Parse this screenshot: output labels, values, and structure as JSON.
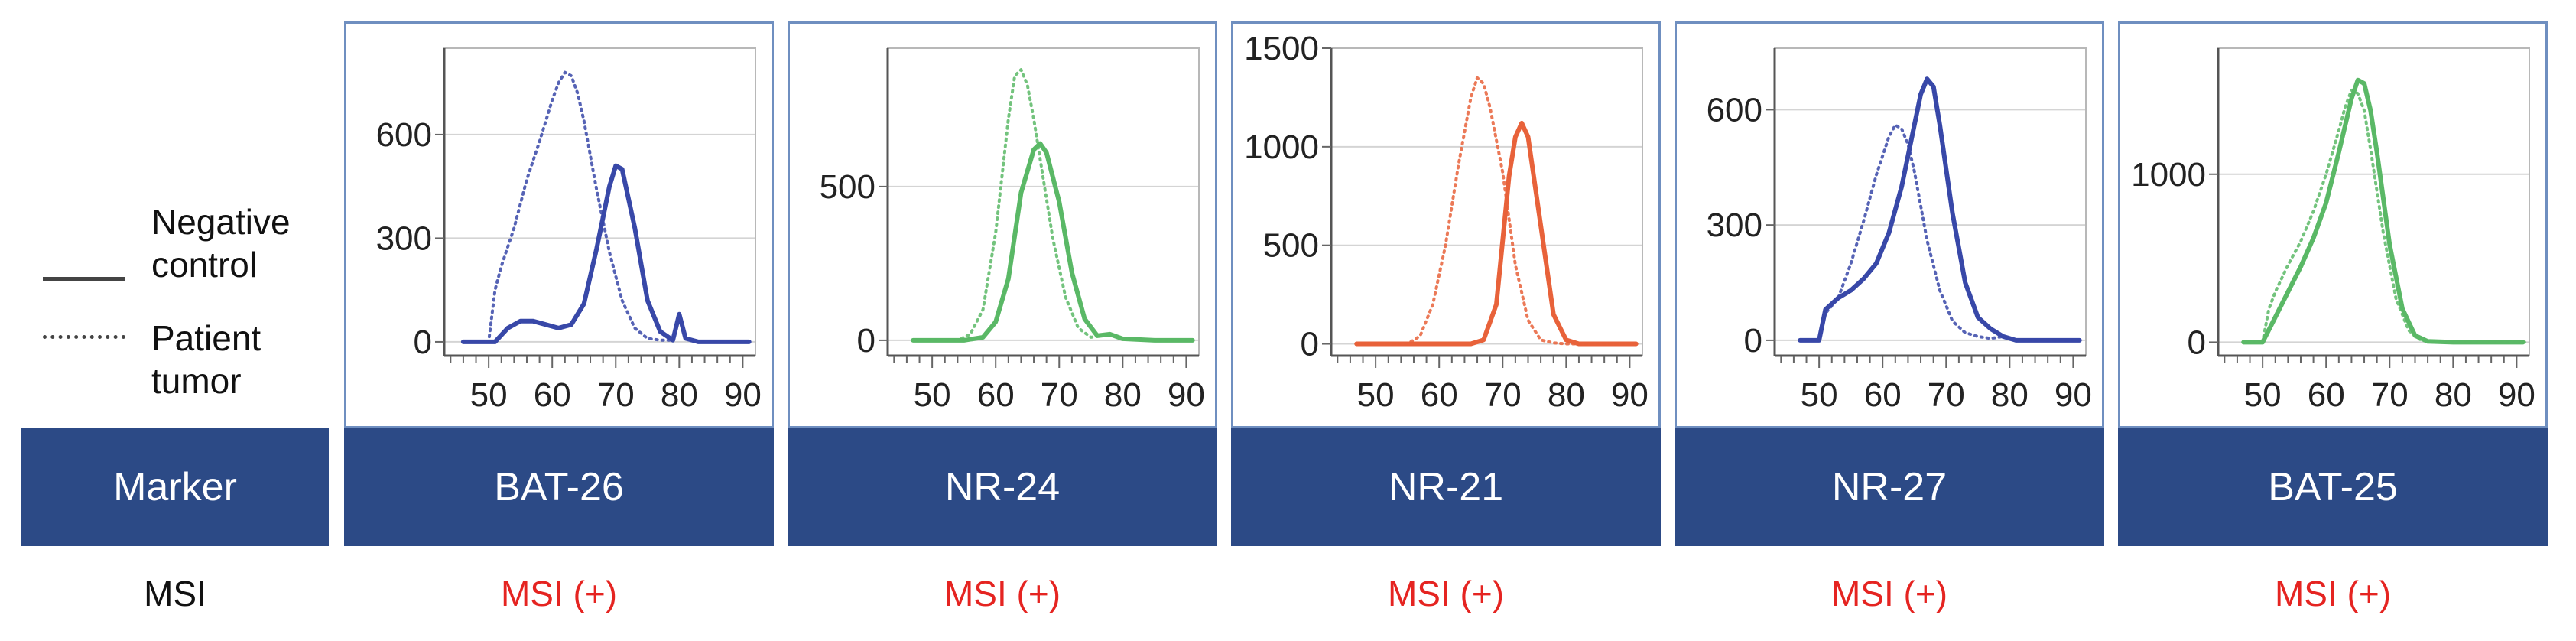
{
  "legend": {
    "entries": [
      {
        "label_lines": [
          "Negative",
          "control"
        ],
        "style": "solid"
      },
      {
        "label_lines": [
          "Patient",
          "tumor"
        ],
        "style": "dotted"
      }
    ]
  },
  "row_labels": {
    "marker": "Marker",
    "msi": "MSI"
  },
  "colors": {
    "blue": "#3848a8",
    "green": "#5ab866",
    "orange": "#e8623a",
    "bar": "#2c4a86",
    "msi_text": "#e52421"
  },
  "chart_data": [
    {
      "type": "line",
      "marker": "BAT-26",
      "msi_status": "MSI (+)",
      "color": "blue",
      "x_ticks": [
        50,
        60,
        70,
        80,
        90
      ],
      "y_ticks": [
        0,
        300,
        600
      ],
      "xlim": [
        43,
        92
      ],
      "ylim": [
        -40,
        850
      ],
      "grid": true,
      "series": [
        {
          "style": "solid",
          "x": [
            46,
            51,
            53,
            55,
            57,
            59,
            61,
            63,
            65,
            67,
            69,
            70,
            71,
            73,
            75,
            77,
            79,
            80,
            81,
            83,
            86,
            91
          ],
          "y": [
            0,
            0,
            40,
            60,
            60,
            50,
            40,
            50,
            110,
            270,
            450,
            510,
            500,
            330,
            120,
            30,
            5,
            80,
            10,
            0,
            0,
            0
          ]
        },
        {
          "style": "dotted",
          "x": [
            46,
            50,
            51,
            52,
            54,
            56,
            58,
            60,
            61,
            62,
            63,
            64,
            65,
            67,
            69,
            71,
            73,
            75,
            77,
            79,
            80,
            81,
            83,
            86,
            91
          ],
          "y": [
            0,
            0,
            150,
            220,
            330,
            470,
            580,
            700,
            750,
            780,
            770,
            720,
            640,
            440,
            260,
            120,
            40,
            10,
            5,
            5,
            70,
            10,
            0,
            0,
            0
          ]
        }
      ]
    },
    {
      "type": "line",
      "marker": "NR-24",
      "msi_status": "MSI (+)",
      "color": "green",
      "x_ticks": [
        50,
        60,
        70,
        80,
        90
      ],
      "y_ticks": [
        0,
        500
      ],
      "xlim": [
        43,
        92
      ],
      "ylim": [
        -50,
        950
      ],
      "grid": true,
      "series": [
        {
          "style": "solid",
          "x": [
            47,
            55,
            58,
            60,
            62,
            64,
            66,
            67,
            68,
            70,
            72,
            74,
            76,
            78,
            80,
            85,
            91
          ],
          "y": [
            0,
            0,
            10,
            60,
            200,
            480,
            620,
            640,
            610,
            450,
            220,
            70,
            15,
            20,
            5,
            0,
            0
          ]
        },
        {
          "style": "dotted",
          "x": [
            47,
            54,
            56,
            58,
            60,
            62,
            63,
            64,
            65,
            66,
            67,
            69,
            71,
            73,
            75,
            78,
            80,
            85,
            91
          ],
          "y": [
            0,
            0,
            20,
            100,
            350,
            720,
            860,
            880,
            830,
            720,
            590,
            330,
            140,
            40,
            10,
            20,
            5,
            0,
            0
          ]
        }
      ]
    },
    {
      "type": "line",
      "marker": "NR-21",
      "msi_status": "MSI (+)",
      "color": "orange",
      "x_ticks": [
        50,
        60,
        70,
        80,
        90
      ],
      "y_ticks": [
        0,
        500,
        1000,
        1500
      ],
      "xlim": [
        43,
        92
      ],
      "ylim": [
        -60,
        1500
      ],
      "grid": true,
      "series": [
        {
          "style": "solid",
          "x": [
            47,
            65,
            67,
            69,
            71,
            72,
            73,
            74,
            76,
            78,
            80,
            82,
            86,
            91
          ],
          "y": [
            0,
            0,
            20,
            200,
            850,
            1050,
            1120,
            1050,
            600,
            150,
            20,
            0,
            0,
            0
          ]
        },
        {
          "style": "dotted",
          "x": [
            47,
            55,
            57,
            59,
            61,
            63,
            65,
            66,
            67,
            68,
            70,
            72,
            74,
            76,
            78,
            80,
            86,
            91
          ],
          "y": [
            0,
            0,
            40,
            200,
            500,
            900,
            1250,
            1350,
            1320,
            1200,
            870,
            400,
            120,
            20,
            5,
            0,
            0,
            0
          ]
        }
      ]
    },
    {
      "type": "line",
      "marker": "NR-27",
      "msi_status": "MSI (+)",
      "color": "blue",
      "x_ticks": [
        50,
        60,
        70,
        80,
        90
      ],
      "y_ticks": [
        0,
        300,
        600
      ],
      "xlim": [
        43,
        92
      ],
      "ylim": [
        -40,
        760
      ],
      "grid": true,
      "series": [
        {
          "style": "solid",
          "x": [
            47,
            50,
            51,
            53,
            55,
            57,
            59,
            61,
            63,
            65,
            66,
            67,
            68,
            69,
            71,
            73,
            75,
            77,
            79,
            81,
            84,
            91
          ],
          "y": [
            0,
            0,
            80,
            110,
            130,
            160,
            200,
            280,
            400,
            560,
            640,
            680,
            660,
            560,
            330,
            150,
            60,
            30,
            10,
            0,
            0,
            0
          ]
        },
        {
          "style": "dotted",
          "x": [
            47,
            50,
            51,
            53,
            55,
            57,
            59,
            61,
            62,
            63,
            64,
            65,
            67,
            69,
            71,
            73,
            75,
            77,
            79,
            81,
            84,
            91
          ],
          "y": [
            0,
            0,
            70,
            110,
            200,
            310,
            430,
            530,
            560,
            550,
            510,
            440,
            260,
            130,
            50,
            20,
            10,
            5,
            10,
            0,
            0,
            0
          ]
        }
      ]
    },
    {
      "type": "line",
      "marker": "BAT-25",
      "msi_status": "MSI (+)",
      "color": "green",
      "x_ticks": [
        50,
        60,
        70,
        80,
        90
      ],
      "y_ticks": [
        0,
        1000
      ],
      "xlim": [
        43,
        92
      ],
      "ylim": [
        -80,
        1750
      ],
      "grid": true,
      "series": [
        {
          "style": "solid",
          "x": [
            47,
            50,
            52,
            54,
            56,
            58,
            60,
            62,
            64,
            65,
            66,
            67,
            68,
            70,
            72,
            74,
            76,
            80,
            86,
            91
          ],
          "y": [
            0,
            0,
            150,
            300,
            450,
            620,
            830,
            1130,
            1450,
            1560,
            1540,
            1380,
            1130,
            580,
            200,
            40,
            5,
            0,
            0,
            0
          ]
        },
        {
          "style": "dotted",
          "x": [
            47,
            50,
            51,
            52,
            54,
            56,
            58,
            60,
            62,
            63,
            64,
            65,
            66,
            67,
            69,
            71,
            73,
            75,
            80,
            86,
            91
          ],
          "y": [
            0,
            0,
            200,
            300,
            460,
            600,
            780,
            1000,
            1260,
            1400,
            1500,
            1480,
            1380,
            1150,
            650,
            260,
            70,
            10,
            0,
            0,
            0
          ]
        }
      ]
    }
  ]
}
